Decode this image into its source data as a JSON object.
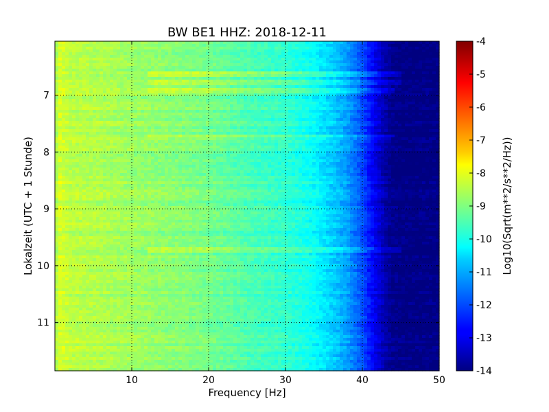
{
  "chart_data": {
    "type": "heatmap",
    "title": "BW BE1 HHZ: 2018-12-11",
    "xlabel": "Frequency [Hz]",
    "ylabel": "Lokalzeit (UTC + 1 Stunde)",
    "xlim": [
      0,
      50
    ],
    "ylim": [
      11.85,
      6.05
    ],
    "x_ticks": [
      "10",
      "20",
      "30",
      "40",
      "50"
    ],
    "x_tick_values": [
      10,
      20,
      30,
      40,
      50
    ],
    "y_ticks": [
      "7",
      "8",
      "9",
      "10",
      "11"
    ],
    "y_tick_values": [
      7,
      8,
      9,
      10,
      11
    ],
    "grid": true,
    "colorbar": {
      "label": "Log10(Sqrt(m**2/s**2/Hz))",
      "range": [
        -14,
        -4
      ],
      "ticks": [
        "-4",
        "-5",
        "-6",
        "-7",
        "-8",
        "-9",
        "-10",
        "-11",
        "-12",
        "-13",
        "-14"
      ],
      "tick_values": [
        -4,
        -5,
        -6,
        -7,
        -8,
        -9,
        -10,
        -11,
        -12,
        -13,
        -14
      ],
      "colormap": "jet"
    },
    "frequency_profile": {
      "frequency_hz": [
        0,
        0.5,
        1,
        2,
        5,
        10,
        15,
        20,
        25,
        30,
        32,
        34,
        36,
        38,
        40,
        41,
        42,
        43,
        44,
        45,
        50
      ],
      "log10_amplitude": [
        -8.8,
        -8.1,
        -8.2,
        -8.4,
        -8.5,
        -8.7,
        -8.9,
        -9.1,
        -9.5,
        -9.8,
        -10.0,
        -10.3,
        -10.7,
        -11.2,
        -12.0,
        -12.6,
        -13.1,
        -13.6,
        -13.9,
        -14.0,
        -14.0
      ]
    },
    "bright_bands": [
      {
        "time": 6.62,
        "max_frequency_hz": 45,
        "delta": 0.7
      },
      {
        "time": 6.78,
        "max_frequency_hz": 45,
        "delta": 0.5
      },
      {
        "time": 6.92,
        "max_frequency_hz": 44,
        "delta": 0.5
      },
      {
        "time": 7.72,
        "max_frequency_hz": 44,
        "delta": 0.5
      },
      {
        "time": 9.72,
        "max_frequency_hz": 45,
        "delta": 0.6
      }
    ]
  }
}
